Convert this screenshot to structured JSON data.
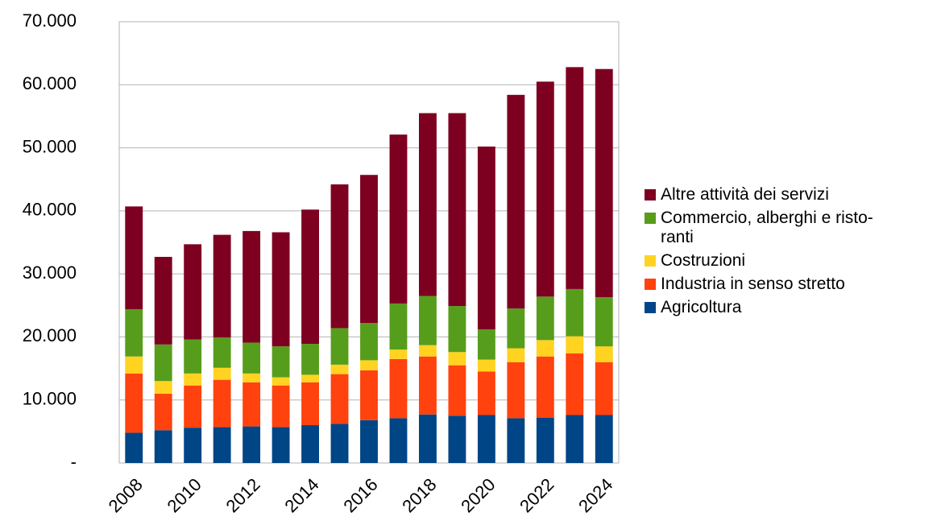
{
  "chart_data": {
    "type": "stacked_bar",
    "categories": [
      "2008",
      null,
      "2010",
      null,
      "2012",
      null,
      "2014",
      null,
      "2016",
      null,
      "2018",
      null,
      "2020",
      null,
      "2022",
      null,
      "2024"
    ],
    "series": [
      {
        "name": "Agricoltura",
        "color": "#004586",
        "values": [
          4800,
          5200,
          5600,
          5700,
          5800,
          5700,
          6000,
          6200,
          6800,
          7100,
          7700,
          7500,
          7600,
          7100,
          7200,
          7600,
          7600
        ]
      },
      {
        "name": "Industria in senso stretto",
        "color": "#ff420e",
        "values": [
          9400,
          5800,
          6700,
          7500,
          7000,
          6600,
          6800,
          7900,
          7900,
          9400,
          9200,
          8000,
          6900,
          8900,
          9700,
          9800,
          8400
        ]
      },
      {
        "name": "Costruzioni",
        "color": "#ffd320",
        "values": [
          2700,
          2000,
          1900,
          1900,
          1400,
          1300,
          1200,
          1500,
          1600,
          1500,
          1800,
          2100,
          1900,
          2200,
          2600,
          2700,
          2500
        ]
      },
      {
        "name": "Commercio, alberghi e risto-\nranti",
        "color": "#579d1c",
        "values": [
          7500,
          5800,
          5400,
          4800,
          4900,
          4900,
          4900,
          5800,
          5900,
          7300,
          7800,
          7300,
          4800,
          6300,
          6900,
          7500,
          7800
        ]
      },
      {
        "name": "Altre attività dei servizi",
        "color": "#7e0021",
        "values": [
          16300,
          13900,
          15100,
          16300,
          17700,
          18100,
          21300,
          22800,
          23500,
          26800,
          29000,
          30600,
          29000,
          33900,
          34100,
          35200,
          36200
        ]
      }
    ],
    "ylim": [
      0,
      70000
    ],
    "yticks": [
      {
        "value": 0,
        "label": "-"
      },
      {
        "value": 10000,
        "label": "10.000"
      },
      {
        "value": 20000,
        "label": "20.000"
      },
      {
        "value": 30000,
        "label": "30.000"
      },
      {
        "value": 40000,
        "label": "40.000"
      },
      {
        "value": 50000,
        "label": "50.000"
      },
      {
        "value": 60000,
        "label": "60.000"
      },
      {
        "value": 70000,
        "label": "70.000"
      }
    ],
    "grid": true,
    "legend": "right"
  }
}
